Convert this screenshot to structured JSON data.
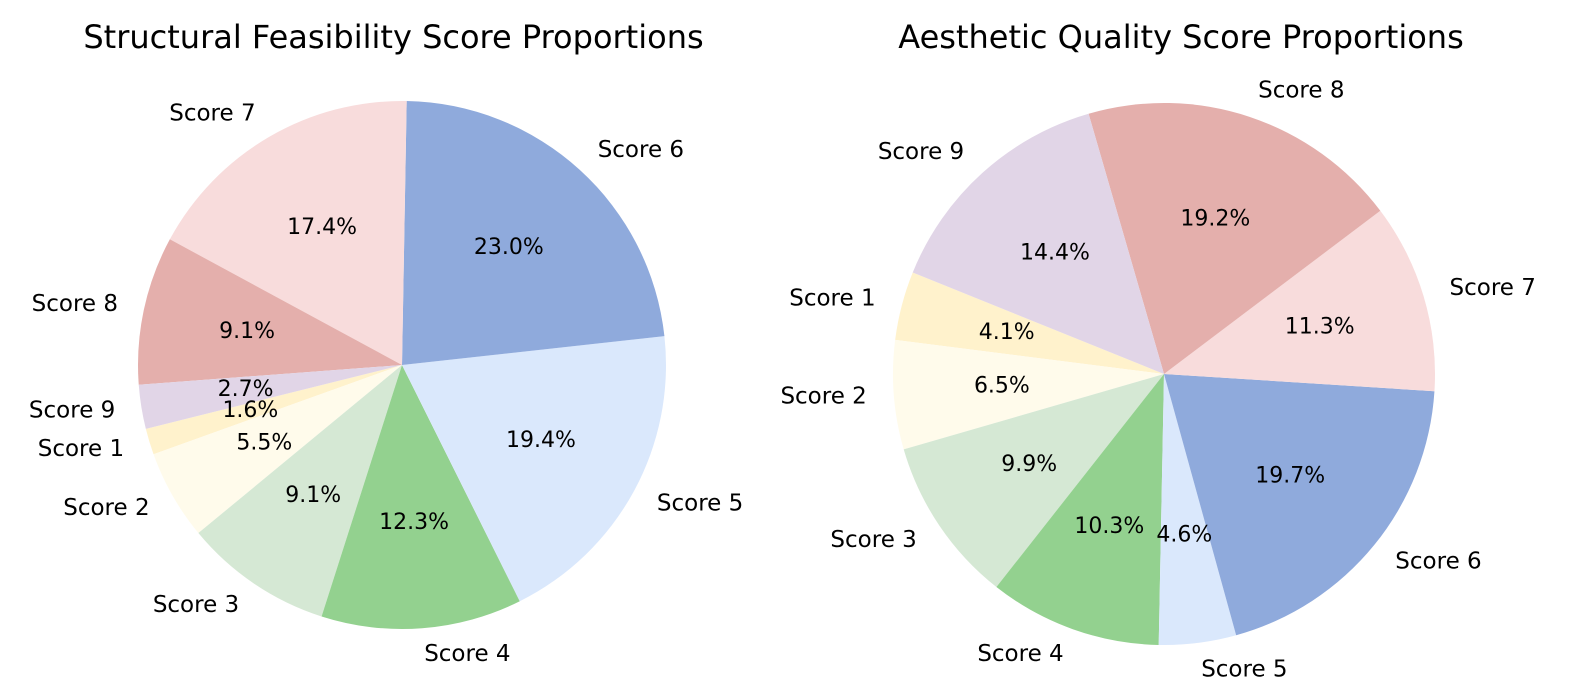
{
  "chart_data": [
    {
      "type": "pie",
      "title": "Structural Feasibility Score Proportions",
      "categories": [
        "Score 1",
        "Score 2",
        "Score 3",
        "Score 4",
        "Score 5",
        "Score 6",
        "Score 7",
        "Score 8",
        "Score 9"
      ],
      "values": [
        1.6,
        5.5,
        9.1,
        12.3,
        19.4,
        23.0,
        17.4,
        9.1,
        2.7
      ],
      "labels": [
        "1.6%",
        "5.5%",
        "9.1%",
        "12.3%",
        "19.4%",
        "23.0%",
        "17.4%",
        "9.1%",
        "2.7%"
      ],
      "colors": [
        "#fff2cc",
        "#fffbeb",
        "#d5e8d4",
        "#93d18f",
        "#dae8fc",
        "#8faadc",
        "#f8dcdc",
        "#e4afac",
        "#e1d5e7"
      ]
    },
    {
      "type": "pie",
      "title": "Aesthetic Quality Score Proportions",
      "categories": [
        "Score 1",
        "Score 2",
        "Score 3",
        "Score 4",
        "Score 5",
        "Score 6",
        "Score 7",
        "Score 8",
        "Score 9"
      ],
      "values": [
        4.1,
        6.5,
        9.9,
        10.3,
        4.6,
        19.7,
        11.3,
        19.2,
        14.4
      ],
      "labels": [
        "4.1%",
        "6.5%",
        "9.9%",
        "10.3%",
        "4.6%",
        "19.7%",
        "11.3%",
        "19.2%",
        "14.4%"
      ],
      "colors": [
        "#fff2cc",
        "#fffbeb",
        "#d5e8d4",
        "#93d18f",
        "#dae8fc",
        "#8faadc",
        "#f8dcdc",
        "#e4afac",
        "#e1d5e7"
      ]
    }
  ]
}
